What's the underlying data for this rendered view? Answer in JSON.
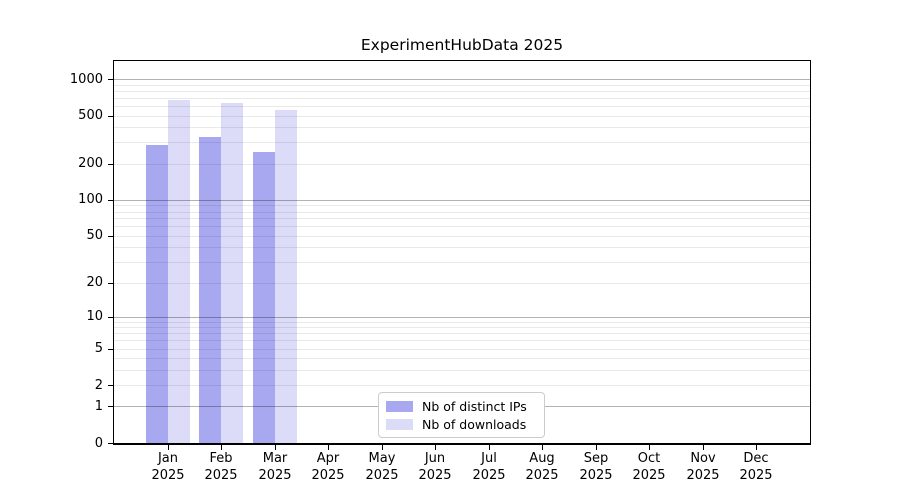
{
  "chart_data": {
    "type": "bar",
    "title": "ExperimentHubData 2025",
    "x_categories": [
      "Jan",
      "Feb",
      "Mar",
      "Apr",
      "May",
      "Jun",
      "Jul",
      "Aug",
      "Sep",
      "Oct",
      "Nov",
      "Dec"
    ],
    "x_year_label": "2025",
    "series": [
      {
        "key": "distinct-ips",
        "name": "Nb of distinct IPs",
        "color": "#a8a8f0",
        "values": [
          285,
          330,
          250,
          0,
          0,
          0,
          0,
          0,
          0,
          0,
          0,
          0
        ]
      },
      {
        "key": "downloads",
        "name": "Nb of downloads",
        "color": "#dcdcf8",
        "values": [
          675,
          630,
          555,
          0,
          0,
          0,
          0,
          0,
          0,
          0,
          0,
          0
        ]
      }
    ],
    "yticks": [
      0,
      1,
      2,
      5,
      10,
      20,
      50,
      100,
      200,
      500,
      1000
    ],
    "yscale": "log10(1+value)",
    "ylim": [
      0,
      1400
    ],
    "grid": {
      "orientation": "horizontal",
      "major_at": [
        1,
        10,
        100,
        1000
      ],
      "minor": "multiples 2-9 of each decade",
      "major_color": "#b3b3b3",
      "minor_color": "#e9e9e9"
    },
    "legend_position": "bottom-center",
    "colors": {
      "axis": "#000000",
      "text": "#000000",
      "background": "#ffffff",
      "legend_border": "#cccccc"
    }
  }
}
